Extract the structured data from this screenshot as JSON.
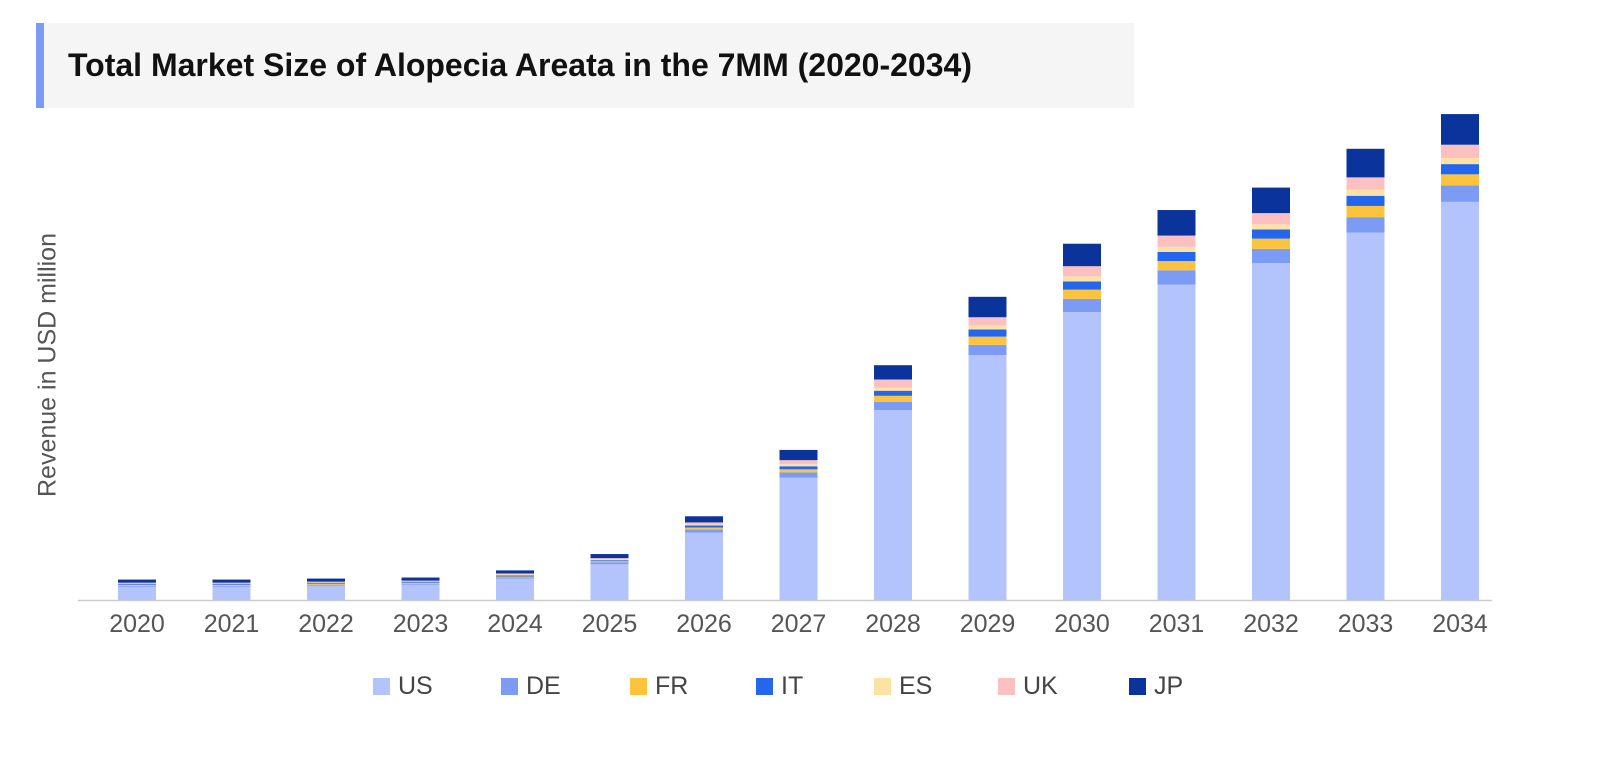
{
  "chart_data": {
    "type": "bar",
    "stacked": true,
    "title": "Total Market Size of Alopecia Areata in the 7MM (2020-2034)",
    "xlabel": "",
    "ylabel": "Revenue in USD million",
    "ylim": [
      0,
      480
    ],
    "grid": false,
    "y_ticks_shown": false,
    "legend_position": "bottom",
    "categories": [
      "2020",
      "2021",
      "2022",
      "2023",
      "2024",
      "2025",
      "2026",
      "2027",
      "2028",
      "2029",
      "2030",
      "2031",
      "2032",
      "2033",
      "2034"
    ],
    "series": [
      {
        "name": "US",
        "color": "#b3c3fb",
        "values": [
          13,
          13,
          14,
          15,
          21,
          35,
          66,
          120,
          186,
          240,
          282,
          309,
          330,
          360,
          390
        ]
      },
      {
        "name": "DE",
        "color": "#7b9bf5",
        "values": [
          1,
          1,
          1,
          1,
          1,
          2,
          3,
          5,
          8,
          10,
          13,
          14,
          14,
          15,
          16
        ]
      },
      {
        "name": "FR",
        "color": "#fcc43c",
        "values": [
          1,
          1,
          1,
          1,
          1,
          1,
          2,
          3,
          6,
          8,
          9,
          9,
          10,
          11,
          11
        ]
      },
      {
        "name": "IT",
        "color": "#2566ee",
        "values": [
          1,
          1,
          1,
          1,
          1,
          1,
          2,
          3,
          5,
          7,
          8,
          9,
          9,
          10,
          10
        ]
      },
      {
        "name": "ES",
        "color": "#fde2a6",
        "values": [
          0.5,
          0.5,
          0.5,
          0.5,
          1,
          1,
          1,
          2,
          3,
          4,
          5,
          5,
          5,
          6,
          6
        ]
      },
      {
        "name": "UK",
        "color": "#fcc0c0",
        "values": [
          0.5,
          0.5,
          0.5,
          0.5,
          1,
          1,
          2,
          4,
          8,
          8,
          10,
          11,
          11,
          12,
          13
        ]
      },
      {
        "name": "JP",
        "color": "#0a339b",
        "values": [
          3,
          3,
          3,
          3,
          3,
          4,
          6,
          10,
          14,
          20,
          22,
          25,
          25,
          28,
          30
        ]
      }
    ]
  }
}
